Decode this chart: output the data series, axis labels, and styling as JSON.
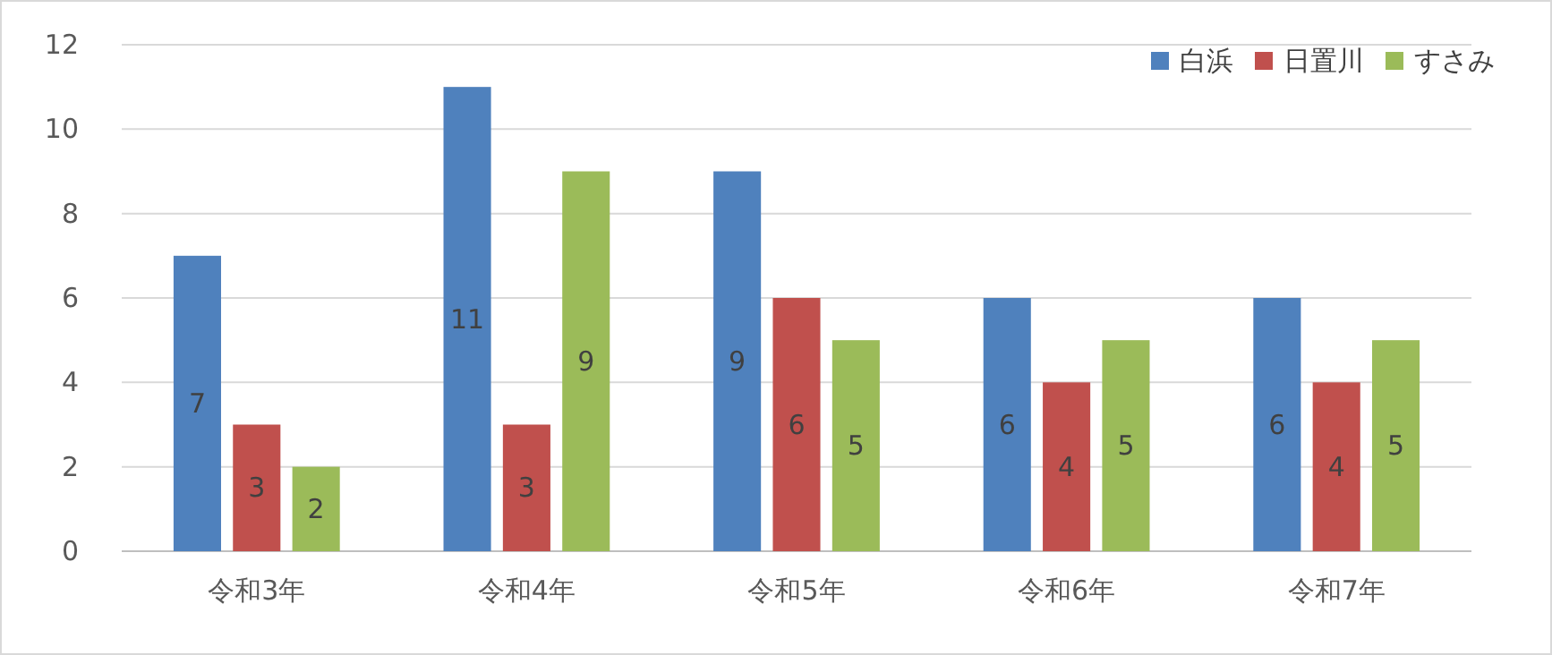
{
  "chart_data": {
    "type": "bar",
    "categories": [
      "令和3年",
      "令和4年",
      "令和5年",
      "令和6年",
      "令和7年"
    ],
    "series": [
      {
        "name": "白浜",
        "color": "#4f81bd",
        "values": [
          7,
          11,
          9,
          6,
          6
        ]
      },
      {
        "name": "日置川",
        "color": "#c0504d",
        "values": [
          3,
          3,
          6,
          4,
          4
        ]
      },
      {
        "name": "すさみ",
        "color": "#9bbb59",
        "values": [
          2,
          9,
          5,
          5,
          5
        ]
      }
    ],
    "ylim": [
      0,
      12
    ],
    "yticks": [
      0,
      2,
      4,
      6,
      8,
      10,
      12
    ],
    "grid": "y",
    "legend": "top right",
    "data_labels": true
  }
}
